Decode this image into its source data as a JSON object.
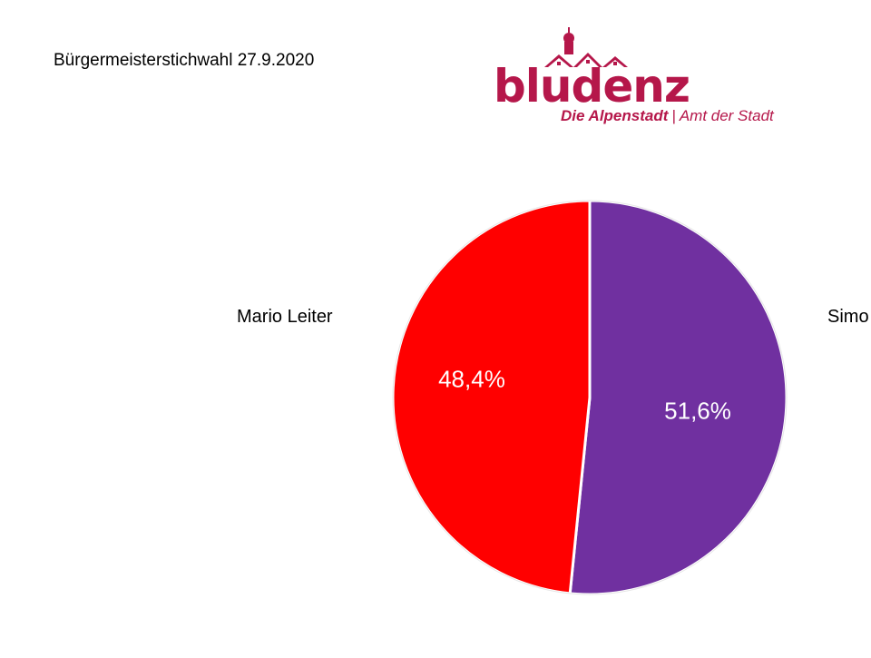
{
  "title": "Bürgermeisterstichwahl 27.9.2020",
  "logo": {
    "wordmark": "bludenz",
    "tagline_bold": "Die Alpenstadt",
    "tagline_sep": "|",
    "tagline_rest": "Amt der Stadt",
    "color": "#b5174a"
  },
  "chart_data": {
    "type": "pie",
    "slices": [
      {
        "name": "Mario Leiter",
        "value": 48.4,
        "label": "48,4%",
        "color": "#ff0000"
      },
      {
        "name": "Simo",
        "value": 51.6,
        "label": "51,6%",
        "color": "#7030a0"
      }
    ]
  }
}
